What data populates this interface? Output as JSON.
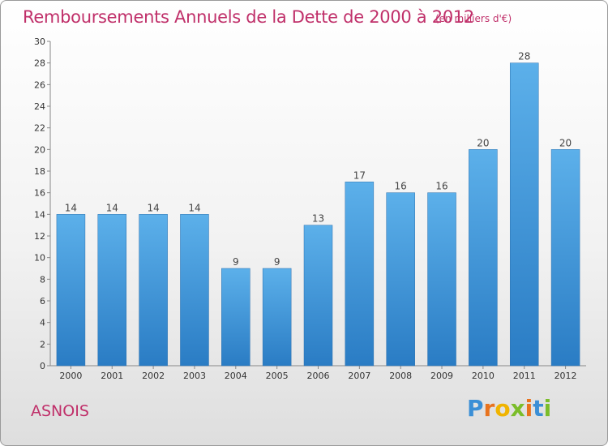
{
  "chart_data": {
    "type": "bar",
    "title": "Remboursements Annuels de la Dette de 2000 à 2012",
    "subtitle": "(en milliers d'€)",
    "categories": [
      "2000",
      "2001",
      "2002",
      "2003",
      "2004",
      "2005",
      "2006",
      "2007",
      "2008",
      "2009",
      "2010",
      "2011",
      "2012"
    ],
    "values": [
      14,
      14,
      14,
      14,
      9,
      9,
      13,
      17,
      16,
      16,
      20,
      28,
      20
    ],
    "ylim": [
      0,
      30
    ],
    "yticks": [
      0,
      2,
      4,
      6,
      8,
      10,
      12,
      14,
      16,
      18,
      20,
      22,
      24,
      26,
      28,
      30
    ],
    "grid": false,
    "bar_color": "#4a9fe0"
  },
  "footer": {
    "commune": "ASNOIS",
    "logo_letters": [
      "P",
      "r",
      "o",
      "x",
      "i",
      "t",
      "i"
    ],
    "logo_colors": [
      "#3b8fd6",
      "#e8731e",
      "#f0b400",
      "#7bbd2a",
      "#e8731e",
      "#3b8fd6",
      "#7bbd2a"
    ]
  }
}
